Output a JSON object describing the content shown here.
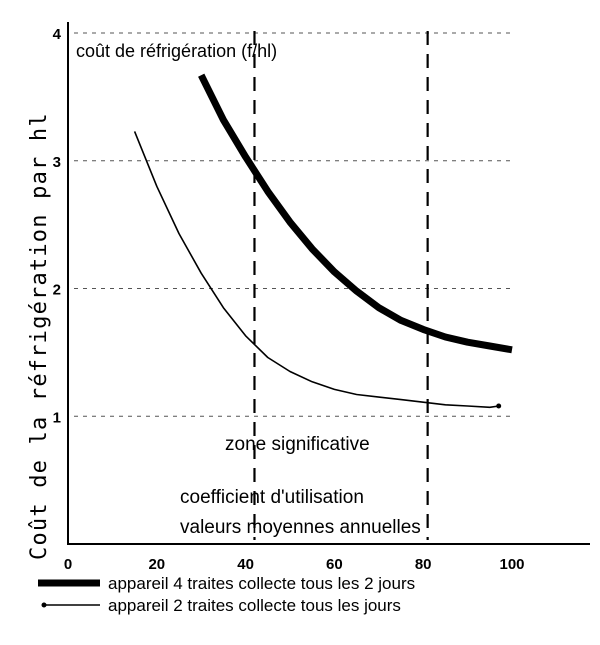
{
  "chart_data": {
    "type": "line",
    "ylabel": "Coût de la réfrigération par hl",
    "inner_label": "coût de réfrigération (f/hl)",
    "xlim": [
      0,
      100
    ],
    "ylim": [
      0,
      4
    ],
    "x_ticks": [
      "0",
      "20",
      "40",
      "60",
      "80",
      "100"
    ],
    "y_ticks": [
      "1",
      "2",
      "3",
      "4"
    ],
    "grid": true,
    "zone_lines_x": [
      42,
      81
    ],
    "annotations": {
      "zone": "zone significative",
      "xlabel_line1": "coefficient d'utilisation",
      "xlabel_line2": "valeurs moyennes annuelles"
    },
    "series": [
      {
        "name": "appareil 4 traites collecte tous les 2 jours",
        "style": "thick",
        "color": "#000000",
        "x": [
          30,
          35,
          40,
          45,
          50,
          55,
          60,
          65,
          70,
          75,
          80,
          85,
          90,
          95,
          100
        ],
        "y": [
          3.67,
          3.32,
          3.03,
          2.76,
          2.52,
          2.31,
          2.13,
          1.98,
          1.85,
          1.75,
          1.68,
          1.62,
          1.58,
          1.55,
          1.52
        ]
      },
      {
        "name": "appareil 2 traites collecte tous les jours",
        "style": "thin",
        "color": "#000000",
        "x": [
          15,
          20,
          25,
          30,
          35,
          40,
          45,
          50,
          55,
          60,
          65,
          70,
          75,
          80,
          85,
          90,
          95,
          97
        ],
        "y": [
          3.23,
          2.8,
          2.43,
          2.12,
          1.85,
          1.63,
          1.46,
          1.35,
          1.27,
          1.21,
          1.17,
          1.15,
          1.13,
          1.11,
          1.09,
          1.08,
          1.07,
          1.08
        ]
      }
    ]
  }
}
